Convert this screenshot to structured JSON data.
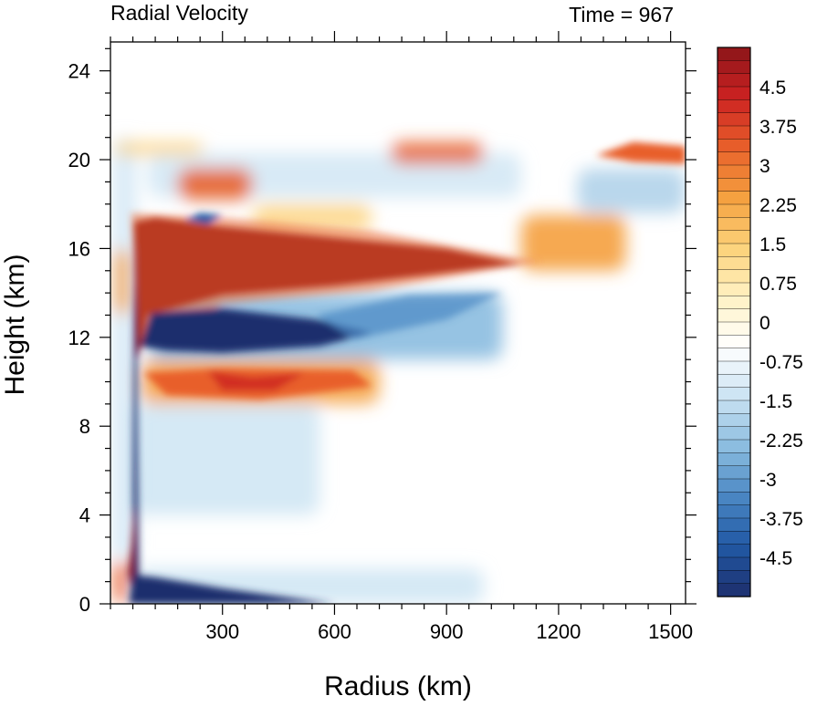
{
  "chart_data": {
    "type": "heatmap",
    "title_left": "Radial Velocity",
    "title_right": "Time = 967",
    "xlabel": "Radius (km)",
    "ylabel": "Height (km)",
    "xlim": [
      0,
      1540
    ],
    "ylim": [
      0,
      25.3
    ],
    "xticks": [
      300,
      600,
      900,
      1200,
      1500
    ],
    "xtick_labels": [
      "300",
      "600",
      "900",
      "1200",
      "1500"
    ],
    "yticks": [
      0,
      4,
      8,
      12,
      16,
      20,
      24
    ],
    "ytick_labels": [
      "0",
      "4",
      "8",
      "12",
      "16",
      "20",
      "24"
    ],
    "colorbar": {
      "min": -5.25,
      "max": 5.25,
      "interval": 0.25,
      "labels": [
        "4.5",
        "3.75",
        "3",
        "2.25",
        "1.5",
        "0.75",
        "0",
        "-0.75",
        "-1.5",
        "-2.25",
        "-3",
        "-3.75",
        "-4.5"
      ],
      "label_values": [
        4.5,
        3.75,
        3,
        2.25,
        1.5,
        0.75,
        0,
        -0.75,
        -1.5,
        -2.25,
        -3,
        -3.75,
        -4.5
      ],
      "colors": [
        "#1e2f6d",
        "#2158a4",
        "#4a87c3",
        "#8bbde0",
        "#cbe3f3",
        "#ffffff",
        "#fff2c4",
        "#fcd27a",
        "#f5a03f",
        "#e85f2a",
        "#cc2222",
        "#8c1519"
      ]
    },
    "features": [
      {
        "name": "upper-level-outflow",
        "sign": "positive",
        "r": [
          60,
          1100
        ],
        "z": [
          14.0,
          17.3
        ],
        "peak": 5.0
      },
      {
        "name": "upper-inflow-below-outflow",
        "sign": "negative",
        "r": [
          70,
          1050
        ],
        "z": [
          11.0,
          13.5
        ],
        "peak": -5.0
      },
      {
        "name": "mid-level-outflow",
        "sign": "positive",
        "r": [
          70,
          700
        ],
        "z": [
          9.3,
          10.6
        ],
        "peak": 3.0
      },
      {
        "name": "boundary-layer-inflow",
        "sign": "negative",
        "r": [
          50,
          600
        ],
        "z": [
          0,
          1.3
        ],
        "peak": -5.0
      },
      {
        "name": "eyewall-lower-outflow",
        "sign": "positive",
        "r": [
          45,
          80
        ],
        "z": [
          1.5,
          4.5
        ],
        "peak": 5.0
      },
      {
        "name": "outer-upper-outflow",
        "sign": "positive",
        "r": [
          1100,
          1540
        ],
        "z": [
          15.0,
          17.5
        ],
        "peak": 2.0
      },
      {
        "name": "tropopause-outflow",
        "sign": "positive",
        "r": [
          1300,
          1540
        ],
        "z": [
          19.8,
          20.7
        ],
        "peak": 3.0
      }
    ]
  }
}
